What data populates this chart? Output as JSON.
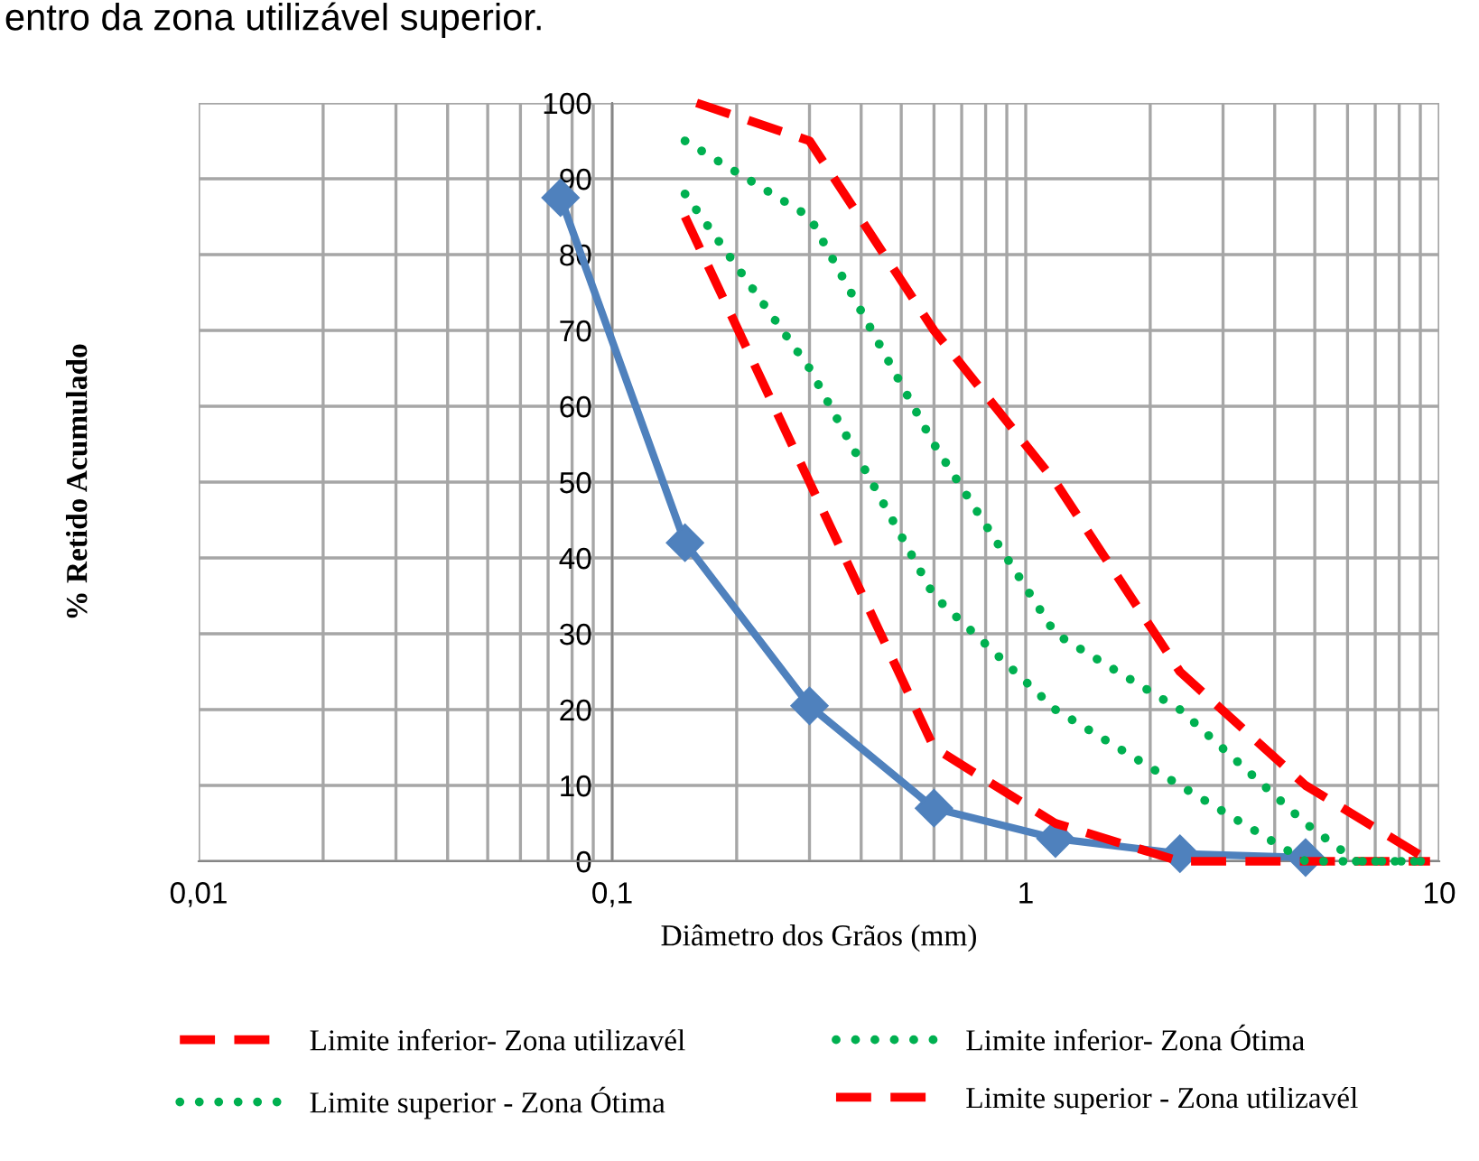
{
  "chart_data": {
    "type": "line",
    "xlabel": "Diâmetro dos Grãos (mm)",
    "ylabel": "% Retido Acumulado",
    "annotations": [
      "entro da zona utilizável superior."
    ],
    "log": "x",
    "xlim": [
      0.01,
      10
    ],
    "xticks": [
      {
        "value": 0.01,
        "label": "0,01"
      },
      {
        "value": 0.1,
        "label": "0,1"
      },
      {
        "value": 1,
        "label": "1"
      },
      {
        "value": 10,
        "label": "10"
      }
    ],
    "ylim": [
      0,
      100
    ],
    "yticks": [
      0,
      10,
      20,
      30,
      40,
      50,
      60,
      70,
      80,
      90,
      100
    ],
    "grid": true,
    "legend": "bottom",
    "series": [
      {
        "color": "#4f81bd",
        "marker": "diamond",
        "line_style": "solid",
        "x": [
          0.075,
          0.15,
          0.3,
          0.6,
          1.18,
          2.36,
          4.75
        ],
        "values": [
          87.5,
          42,
          20.5,
          7,
          3,
          1,
          0.5
        ]
      },
      {
        "name": "Limite inferior- Zona utilizavél",
        "color": "#ff0000",
        "marker": "none",
        "line_style": "dashed",
        "x": [
          0.15,
          0.3,
          0.6,
          1.18,
          2.36,
          4.75,
          9.5
        ],
        "values": [
          85,
          50,
          15,
          5,
          0,
          0,
          0
        ]
      },
      {
        "name": "Limite inferior- Zona Ótima",
        "color": "#00b050",
        "marker": "none",
        "line_style": "dotted",
        "x": [
          0.15,
          0.3,
          0.6,
          1.18,
          2.36,
          4.75,
          9.5
        ],
        "values": [
          88,
          65,
          35,
          20,
          10,
          0,
          0
        ]
      },
      {
        "name": "Limite superior - Zona Ótima",
        "color": "#00b050",
        "marker": "none",
        "line_style": "dotted",
        "x": [
          0.15,
          0.3,
          0.6,
          1.18,
          2.36,
          4.75,
          6.3,
          9.5
        ],
        "values": [
          95,
          85,
          55,
          30,
          20,
          5,
          0,
          0
        ]
      },
      {
        "name": "Limite superior - Zona utilizavél",
        "color": "#ff0000",
        "marker": "none",
        "line_style": "dashed",
        "x": [
          0.16,
          0.3,
          0.6,
          1.18,
          2.36,
          4.75,
          9.5
        ],
        "values": [
          100,
          95,
          70,
          50,
          25,
          10,
          0
        ]
      }
    ]
  }
}
